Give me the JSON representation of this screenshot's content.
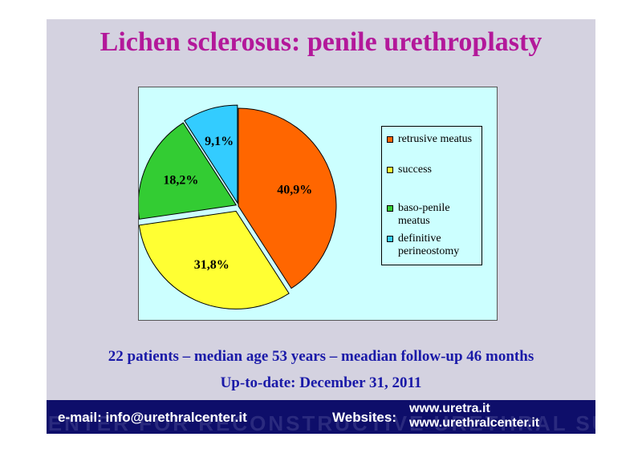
{
  "slide": {
    "title": "Lichen sclerosus: penile urethroplasty",
    "summary_line": "22 patients – median age 53 years – meadian follow-up 46 months",
    "date_line": "Up-to-date: December 31, 2011"
  },
  "footer": {
    "email": "e-mail: info@urethralcenter.it",
    "websites_label": "Websites:",
    "website_1": "www.uretra.it",
    "website_2": "www.urethralcenter.it",
    "watermark": "CENTER FOR RECONSTRUCTIVE URETHRAL SURGERY"
  },
  "chart_data": {
    "type": "pie",
    "slices": [
      {
        "label": "retrusive meatus",
        "value": 40.9,
        "display": "40,9%",
        "color": "#ff6600"
      },
      {
        "label": "success",
        "value": 31.8,
        "display": "31,8%",
        "color": "#ffff33"
      },
      {
        "label": "baso-penile meatus",
        "value": 18.2,
        "display": "18,2%",
        "color": "#33cc33"
      },
      {
        "label": "definitive perineostomy",
        "value": 9.1,
        "display": "9,1%",
        "color": "#33ccff"
      }
    ],
    "legend_position": "right",
    "exploded": true
  }
}
